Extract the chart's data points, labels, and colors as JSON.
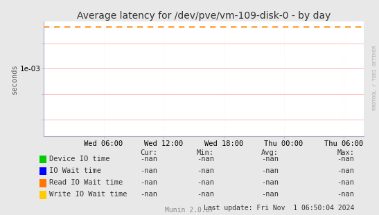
{
  "title": "Average latency for /dev/pve/vm-109-disk-0 - by day",
  "ylabel": "seconds",
  "background_color": "#e8e8e8",
  "plot_background_color": "#ffffff",
  "grid_major_color": "#ffaaaa",
  "grid_minor_color": "#ffdddd",
  "x_tick_labels": [
    "Wed 06:00",
    "Wed 12:00",
    "Wed 18:00",
    "Thu 00:00",
    "Thu 06:00"
  ],
  "ylim_low": 5e-09,
  "ylim_high": 5.0,
  "dashed_line_y": 1.8,
  "dashed_line_color": "#ff8800",
  "right_label": "RRDTOOL / TOBI OETIKER",
  "footer_left": "Munin 2.0.67",
  "footer_right": "Last update: Fri Nov  1 06:50:04 2024",
  "legend_entries": [
    {
      "label": "Device IO time",
      "color": "#00cc00"
    },
    {
      "label": "IO Wait time",
      "color": "#0000ff"
    },
    {
      "label": "Read IO Wait time",
      "color": "#ff7700"
    },
    {
      "label": "Write IO Wait time",
      "color": "#ffcc00"
    }
  ],
  "table_headers": [
    "Cur:",
    "Min:",
    "Avg:",
    "Max:"
  ],
  "table_value": "-nan",
  "title_fontsize": 10,
  "axis_fontsize": 7.5,
  "legend_fontsize": 7.5,
  "footer_fontsize": 7
}
